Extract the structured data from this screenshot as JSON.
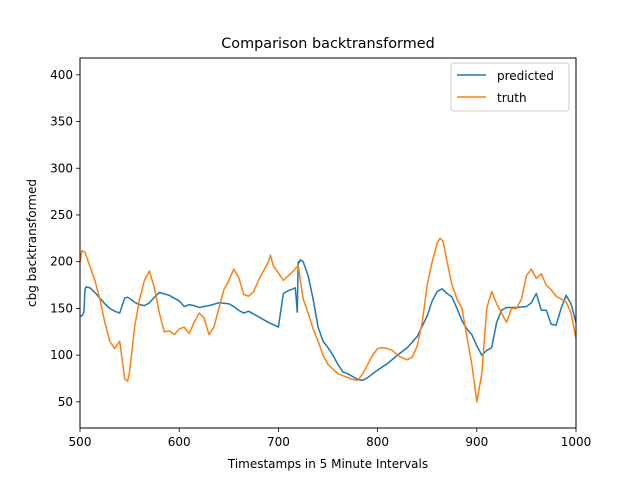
{
  "chart_data": {
    "type": "line",
    "title": "Comparison backtransformed",
    "xlabel": "Timestamps in 5 Minute Intervals",
    "ylabel": "cbg backtransformed",
    "xlim": [
      500,
      1000
    ],
    "ylim": [
      22,
      418
    ],
    "xticks": [
      500,
      600,
      700,
      800,
      900,
      1000
    ],
    "yticks": [
      50,
      100,
      150,
      200,
      250,
      300,
      350,
      400
    ],
    "grid": false,
    "legend_position": "top-right",
    "series": [
      {
        "name": "predicted",
        "color": "#1f77b4",
        "x": [
          500,
          502,
          504,
          505,
          506,
          510,
          515,
          520,
          525,
          530,
          535,
          540,
          545,
          548,
          552,
          556,
          560,
          565,
          570,
          575,
          580,
          590,
          600,
          605,
          610,
          615,
          620,
          625,
          630,
          640,
          650,
          655,
          660,
          665,
          670,
          680,
          690,
          700,
          705,
          710,
          715,
          717,
          718,
          719,
          720,
          721,
          722,
          725,
          730,
          735,
          740,
          745,
          750,
          755,
          760,
          765,
          770,
          775,
          780,
          785,
          790,
          795,
          800,
          810,
          820,
          830,
          840,
          850,
          855,
          860,
          865,
          870,
          875,
          880,
          885,
          890,
          895,
          900,
          905,
          910,
          915,
          920,
          925,
          930,
          940,
          950,
          955,
          960,
          965,
          970,
          975,
          980,
          985,
          990,
          995,
          1000
        ],
        "y": [
          142,
          142,
          146,
          170,
          173,
          172,
          167,
          161,
          155,
          150,
          147,
          145,
          161,
          162,
          159,
          156,
          154,
          153,
          156,
          162,
          167,
          164,
          158,
          152,
          154,
          153,
          151,
          152,
          153,
          156,
          155,
          152,
          148,
          145,
          147,
          141,
          135,
          130,
          166,
          169,
          171,
          172,
          160,
          146,
          200,
          199,
          202,
          200,
          185,
          160,
          130,
          115,
          108,
          100,
          90,
          82,
          80,
          77,
          74,
          73,
          76,
          80,
          84,
          91,
          100,
          108,
          120,
          142,
          158,
          168,
          171,
          166,
          162,
          150,
          137,
          128,
          122,
          110,
          100,
          105,
          108,
          135,
          148,
          151,
          151,
          152,
          156,
          166,
          148,
          148,
          133,
          132,
          150,
          164,
          155,
          135
        ]
      },
      {
        "name": "truth",
        "color": "#ff7f0e",
        "x": [
          500,
          502,
          505,
          510,
          515,
          520,
          525,
          530,
          535,
          540,
          545,
          548,
          550,
          555,
          560,
          565,
          570,
          575,
          580,
          585,
          590,
          595,
          600,
          605,
          610,
          615,
          620,
          625,
          630,
          635,
          640,
          645,
          650,
          655,
          660,
          665,
          670,
          675,
          680,
          685,
          690,
          692,
          695,
          700,
          705,
          710,
          715,
          720,
          722,
          725,
          730,
          735,
          740,
          745,
          750,
          755,
          760,
          765,
          770,
          775,
          780,
          785,
          790,
          795,
          800,
          805,
          810,
          815,
          820,
          825,
          830,
          835,
          840,
          845,
          850,
          855,
          860,
          863,
          866,
          870,
          875,
          880,
          885,
          890,
          895,
          900,
          905,
          910,
          915,
          920,
          925,
          930,
          935,
          940,
          945,
          950,
          955,
          960,
          965,
          970,
          975,
          980,
          985,
          990,
          995,
          1000
        ],
        "y": [
          200,
          212,
          210,
          195,
          180,
          160,
          135,
          115,
          107,
          115,
          75,
          72,
          82,
          130,
          160,
          180,
          190,
          172,
          145,
          125,
          126,
          122,
          128,
          130,
          123,
          135,
          145,
          140,
          122,
          130,
          150,
          170,
          180,
          192,
          183,
          165,
          163,
          168,
          180,
          190,
          200,
          207,
          195,
          188,
          180,
          185,
          190,
          196,
          180,
          160,
          145,
          128,
          115,
          100,
          90,
          85,
          80,
          78,
          76,
          74,
          73,
          80,
          90,
          100,
          107,
          108,
          107,
          105,
          100,
          97,
          95,
          98,
          110,
          135,
          175,
          200,
          220,
          225,
          222,
          200,
          175,
          160,
          150,
          120,
          90,
          50,
          80,
          150,
          168,
          155,
          145,
          135,
          150,
          150,
          160,
          185,
          192,
          182,
          187,
          175,
          170,
          163,
          160,
          157,
          145,
          118
        ]
      }
    ]
  }
}
